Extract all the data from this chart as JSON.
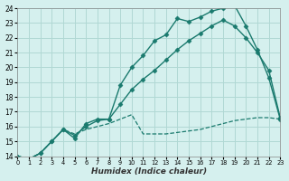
{
  "xlabel": "Humidex (Indice chaleur)",
  "ylabel": "",
  "bg_color": "#d5f0ee",
  "grid_color": "#b0d8d4",
  "line_color": "#1a7a6e",
  "xlim": [
    0,
    23
  ],
  "ylim": [
    14,
    24
  ],
  "yticks": [
    14,
    15,
    16,
    17,
    18,
    19,
    20,
    21,
    22,
    23,
    24
  ],
  "xticks": [
    0,
    1,
    2,
    3,
    4,
    5,
    6,
    7,
    8,
    9,
    10,
    11,
    12,
    13,
    14,
    15,
    16,
    17,
    18,
    19,
    20,
    21,
    22,
    23
  ],
  "series": [
    {
      "x": [
        0,
        1,
        2,
        3,
        4,
        5,
        6,
        7,
        8,
        9,
        10,
        11,
        12,
        13,
        14,
        15,
        16,
        17,
        18,
        19,
        20,
        21,
        22,
        23
      ],
      "y": [
        14.0,
        13.8,
        14.2,
        15.0,
        15.8,
        15.2,
        16.2,
        16.5,
        16.5,
        18.8,
        20.0,
        20.8,
        21.8,
        22.2,
        23.3,
        23.1,
        23.4,
        23.8,
        24.0,
        24.2,
        22.8,
        21.2,
        19.3,
        16.5
      ],
      "marker": "D",
      "linestyle": "-",
      "linewidth": 1.0
    },
    {
      "x": [
        0,
        1,
        2,
        3,
        4,
        5,
        6,
        7,
        8,
        9,
        10,
        11,
        12,
        13,
        14,
        15,
        16,
        17,
        18,
        19,
        20,
        21,
        22,
        23
      ],
      "y": [
        14.0,
        13.8,
        14.2,
        15.0,
        15.8,
        15.4,
        16.0,
        16.4,
        16.5,
        17.5,
        18.5,
        19.2,
        19.8,
        20.5,
        21.2,
        21.8,
        22.3,
        22.8,
        23.2,
        22.8,
        22.0,
        21.0,
        19.8,
        16.6
      ],
      "marker": "D",
      "linestyle": "-",
      "linewidth": 1.0
    },
    {
      "x": [
        0,
        1,
        2,
        3,
        4,
        5,
        6,
        7,
        8,
        9,
        10,
        11,
        12,
        13,
        14,
        15,
        16,
        17,
        18,
        19,
        20,
        21,
        22,
        23
      ],
      "y": [
        14.0,
        13.8,
        14.2,
        15.0,
        15.8,
        15.5,
        15.8,
        16.0,
        16.2,
        16.5,
        16.8,
        15.5,
        15.5,
        15.5,
        15.6,
        15.7,
        15.8,
        16.0,
        16.2,
        16.4,
        16.5,
        16.6,
        16.6,
        16.5
      ],
      "marker": null,
      "linestyle": "--",
      "linewidth": 0.9
    }
  ]
}
